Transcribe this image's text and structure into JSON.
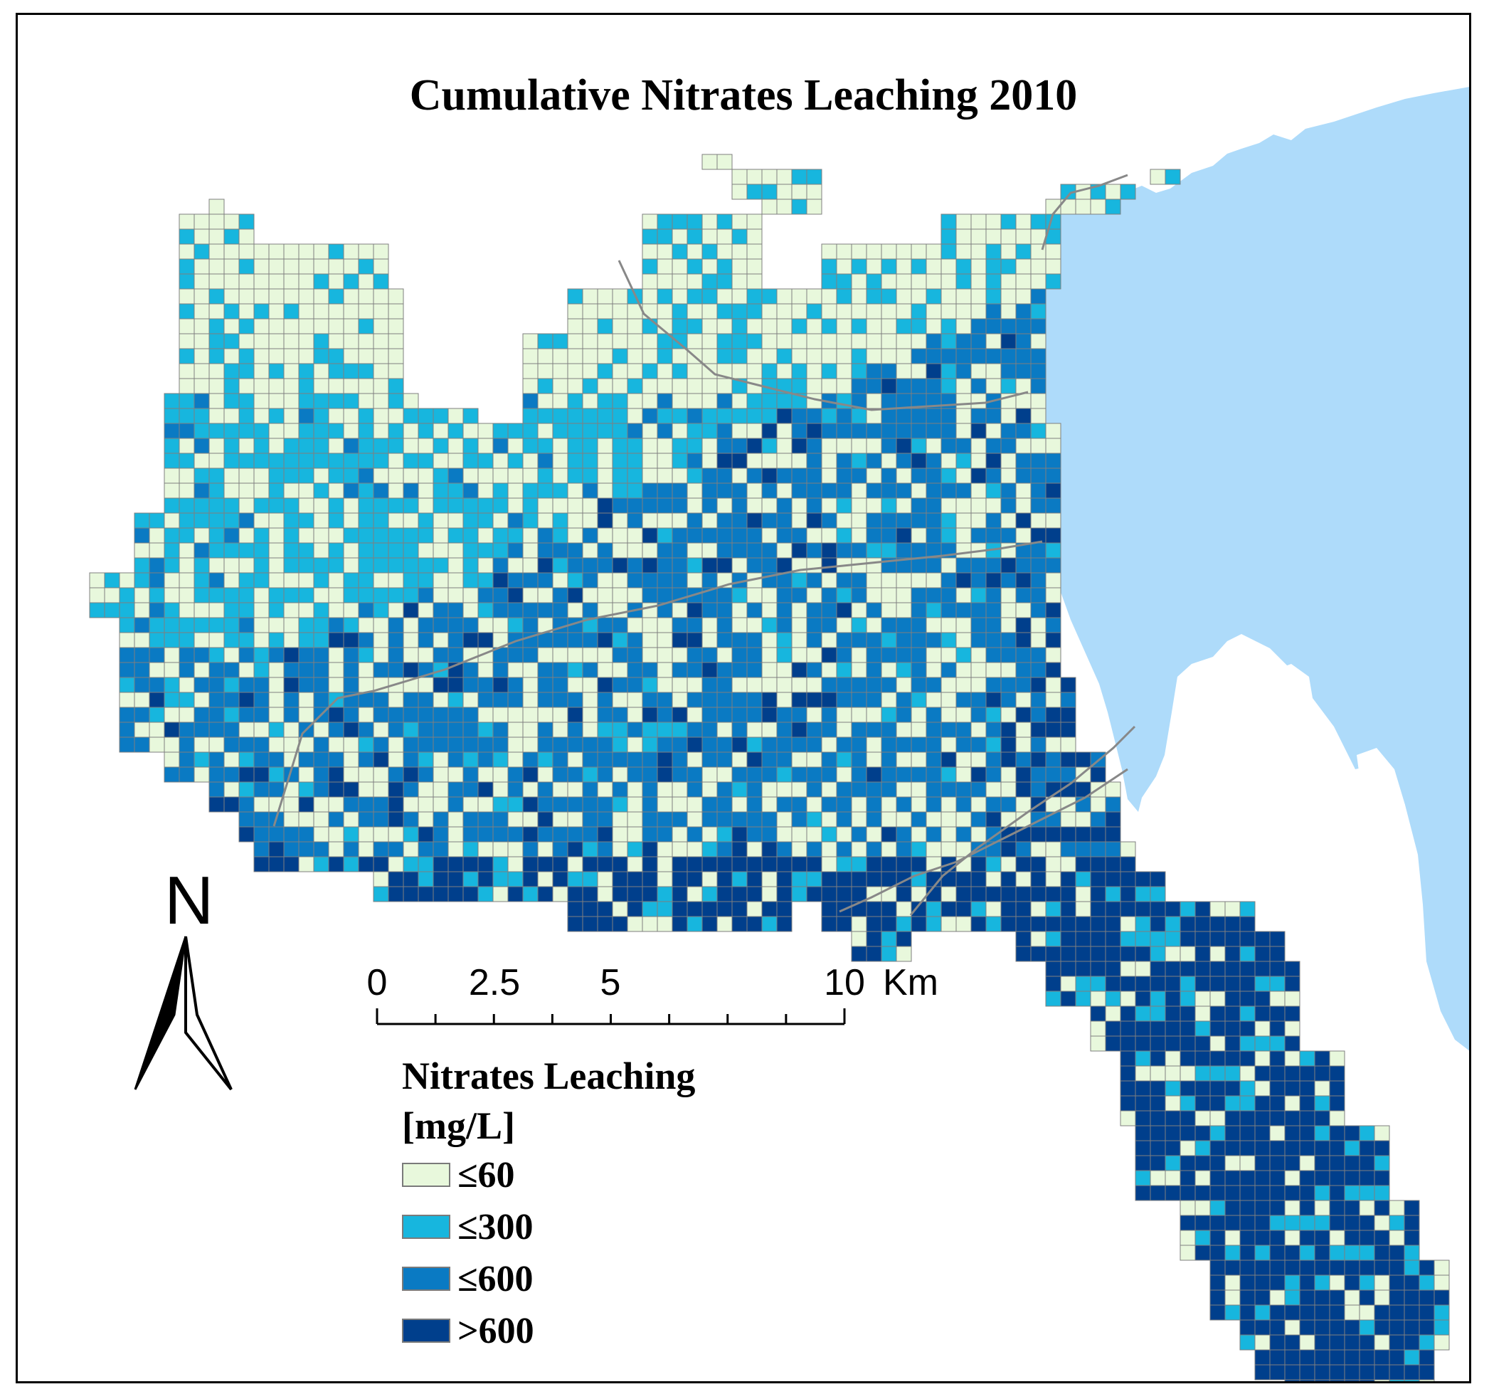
{
  "title": "Cumulative Nitrates Leaching 2010",
  "colors": {
    "class_1": "#e8f8dc",
    "class_2": "#17b6de",
    "class_3": "#0a7ac3",
    "class_4": "#003f8c",
    "water": "#aedbfa",
    "grid_line": "#7f7f7f",
    "road": "#888888"
  },
  "north_arrow": {
    "label": "N"
  },
  "scale_bar": {
    "labels": [
      "0",
      "2.5",
      "5",
      "10",
      "Km"
    ],
    "unit": "Km"
  },
  "legend": {
    "title_line1": "Nitrates Leaching",
    "title_line2": "[mg/L]",
    "items": [
      {
        "label": "≤60",
        "class": "class_1"
      },
      {
        "label": "≤300",
        "class": "class_2"
      },
      {
        "label": "≤600",
        "class": "class_3"
      },
      {
        "label": ">600",
        "class": "class_4"
      }
    ]
  }
}
